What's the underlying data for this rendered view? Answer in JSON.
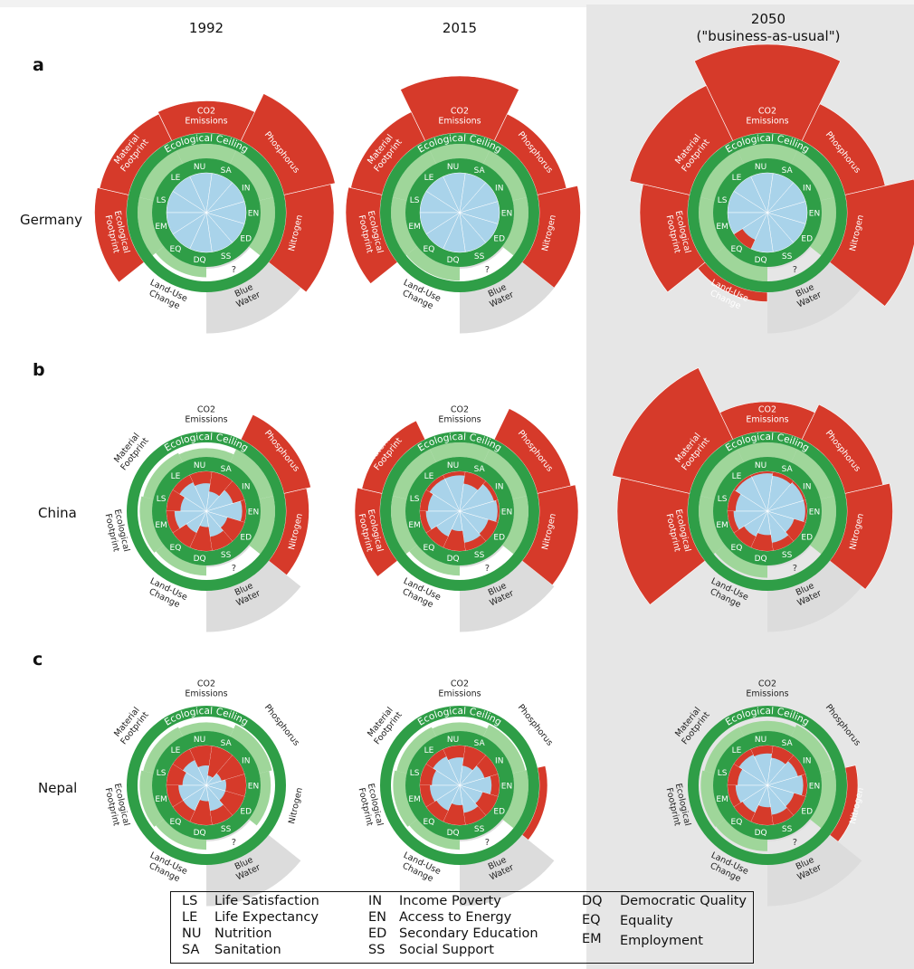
{
  "columns": [
    "1992",
    "2015",
    "2050",
    "(\"business-as-usual\")"
  ],
  "rows": [
    {
      "letter": "a",
      "country": "Germany"
    },
    {
      "letter": "b",
      "country": "China"
    },
    {
      "letter": "c",
      "country": "Nepal"
    }
  ],
  "ceiling_label": "Ecological Ceiling",
  "question_mark": "?",
  "ecological_labels": [
    {
      "key": "co2",
      "lines": [
        "CO2",
        "Emissions"
      ]
    },
    {
      "key": "phos",
      "lines": [
        "Phosphorus"
      ]
    },
    {
      "key": "nitro",
      "lines": [
        "Nitrogen"
      ]
    },
    {
      "key": "water",
      "lines": [
        "Blue",
        "Water"
      ]
    },
    {
      "key": "land",
      "lines": [
        "Land-Use",
        "Change"
      ]
    },
    {
      "key": "eco",
      "lines": [
        "Ecological",
        "Footprint"
      ]
    },
    {
      "key": "mat",
      "lines": [
        "Material",
        "Footprint"
      ]
    }
  ],
  "social_codes": [
    "LS",
    "LE",
    "NU",
    "SA",
    "IN",
    "EN",
    "ED",
    "SS",
    "DQ",
    "EQ",
    "EM"
  ],
  "colors": {
    "overshoot": "#d63a2a",
    "ceiling_ring": "#2f9e47",
    "safe_space": "#9fd69a",
    "social_core": "#a9d3ea",
    "shortfall": "#d63a2a",
    "unknown": "#dcdcdc",
    "highlight_bg": "#e6e6e6"
  },
  "legend": [
    {
      "code": "LS",
      "name": "Life Satisfaction"
    },
    {
      "code": "LE",
      "name": "Life Expectancy"
    },
    {
      "code": "NU",
      "name": "Nutrition"
    },
    {
      "code": "SA",
      "name": "Sanitation"
    },
    {
      "code": "IN",
      "name": "Income Poverty"
    },
    {
      "code": "EN",
      "name": "Access to Energy"
    },
    {
      "code": "ED",
      "name": "Secondary Education"
    },
    {
      "code": "SS",
      "name": "Social Support"
    },
    {
      "code": "DQ",
      "name": "Democratic Quality"
    },
    {
      "code": "EQ",
      "name": "Equality"
    },
    {
      "code": "EM",
      "name": "Employment"
    }
  ],
  "doughnuts": [
    {
      "country": "Germany",
      "year": "1992",
      "eco": {
        "co2": 1.55,
        "phos": 2.0,
        "nitro": 1.9,
        "water": 0.55,
        "land": 0.72,
        "eco": 1.55,
        "mat": 1.5
      },
      "social_shortfall": {
        "LS": 0,
        "LE": 0,
        "NU": 0,
        "SA": 0,
        "IN": 0,
        "EN": 0,
        "ED": 0,
        "SS": 0,
        "DQ": 0,
        "EQ": 0,
        "EM": 0
      }
    },
    {
      "country": "Germany",
      "year": "2015",
      "eco": {
        "co2": 2.1,
        "phos": 1.5,
        "nitro": 1.75,
        "water": 0.55,
        "land": 0.95,
        "eco": 1.6,
        "mat": 1.55
      },
      "social_shortfall": {
        "LS": 0,
        "LE": 0,
        "NU": 0,
        "SA": 0,
        "IN": 0,
        "EN": 0,
        "ED": 0,
        "SS": 0,
        "DQ": 0,
        "EQ": 0,
        "EM": 0
      }
    },
    {
      "country": "Germany",
      "year": "2050",
      "eco": {
        "co2": 2.8,
        "phos": 1.75,
        "nitro": 2.4,
        "water": 0.55,
        "land": 1.05,
        "eco": 1.9,
        "mat": 2.2
      },
      "social_shortfall": {
        "LS": 0,
        "LE": 0,
        "NU": 0,
        "SA": 0,
        "IN": 0,
        "EN": 0,
        "ED": 0,
        "SS": 0,
        "DQ": 0,
        "EQ": 0.25,
        "EM": 0
      }
    },
    {
      "country": "China",
      "year": "1992",
      "eco": {
        "co2": 0.6,
        "phos": 1.45,
        "nitro": 1.35,
        "water": 0.55,
        "land": 0.7,
        "eco": 0.85,
        "mat": 0.72
      },
      "social_shortfall": {
        "LS": 0.35,
        "LE": 0.2,
        "NU": 0.3,
        "SA": 0.5,
        "IN": 0.3,
        "EN": 0.1,
        "ED": 0.45,
        "SS": 0.35,
        "DQ": 0.6,
        "EQ": 0.4,
        "EM": 0.2
      }
    },
    {
      "country": "China",
      "year": "2015",
      "eco": {
        "co2": 1.0,
        "phos": 1.6,
        "nitro": 1.7,
        "water": 0.55,
        "land": 0.7,
        "eco": 1.4,
        "mat": 1.3
      },
      "social_shortfall": {
        "LS": 0.2,
        "LE": 0.1,
        "NU": 0.1,
        "SA": 0.3,
        "IN": 0.1,
        "EN": 0.05,
        "ED": 0.25,
        "SS": 0.2,
        "DQ": 0.5,
        "EQ": 0.3,
        "EM": 0.15
      }
    },
    {
      "country": "China",
      "year": "2050",
      "eco": {
        "co2": 1.5,
        "phos": 1.7,
        "nitro": 1.85,
        "water": 0.55,
        "land": 0.85,
        "eco": 2.4,
        "mat": 2.6
      },
      "social_shortfall": {
        "LS": 0.2,
        "LE": 0.05,
        "NU": 0.05,
        "SA": 0.1,
        "IN": 0.05,
        "EN": 0.05,
        "ED": 0.3,
        "SS": 0.2,
        "DQ": 0.4,
        "EQ": 0.3,
        "EM": 0.15
      }
    },
    {
      "country": "Nepal",
      "year": "1992",
      "eco": {
        "co2": 0.6,
        "phos": 0.9,
        "nitro": 0.7,
        "water": 0.55,
        "land": 0.7,
        "eco": 0.85,
        "mat": 0.72
      },
      "social_shortfall": {
        "LS": 0.4,
        "LE": 0.3,
        "NU": 0.5,
        "SA": 0.75,
        "IN": 0.6,
        "EN": 0.5,
        "ED": 0.5,
        "SS": 0.35,
        "DQ": 0.6,
        "EQ": 0.3,
        "EM": 0.3
      }
    },
    {
      "country": "Nepal",
      "year": "2015",
      "eco": {
        "co2": 0.6,
        "phos": 0.9,
        "nitro": 1.02,
        "water": 0.55,
        "land": 0.7,
        "eco": 0.85,
        "mat": 0.72
      },
      "social_shortfall": {
        "LS": 0.3,
        "LE": 0.2,
        "NU": 0.3,
        "SA": 0.5,
        "IN": 0.35,
        "EN": 0.2,
        "ED": 0.4,
        "SS": 0.3,
        "DQ": 0.5,
        "EQ": 0.3,
        "EM": 0.25
      }
    },
    {
      "country": "Nepal",
      "year": "2050",
      "eco": {
        "co2": 0.7,
        "phos": 0.9,
        "nitro": 1.08,
        "water": 0.55,
        "land": 0.8,
        "eco": 0.85,
        "mat": 0.72
      },
      "social_shortfall": {
        "LS": 0.25,
        "LE": 0.15,
        "NU": 0.2,
        "SA": 0.3,
        "IN": 0.2,
        "EN": 0.1,
        "ED": 0.3,
        "SS": 0.25,
        "DQ": 0.45,
        "EQ": 0.25,
        "EM": 0.2
      }
    }
  ]
}
